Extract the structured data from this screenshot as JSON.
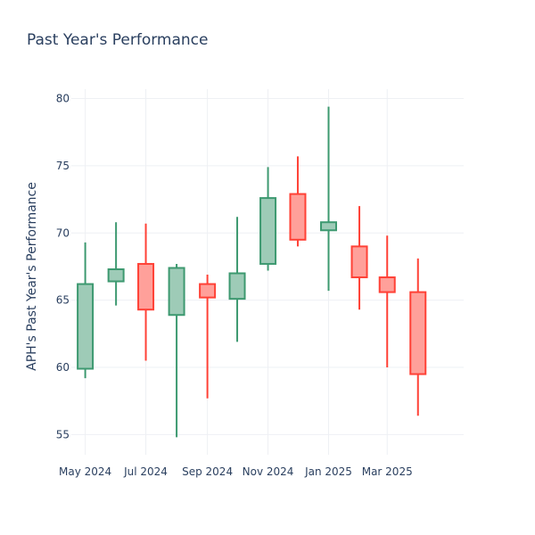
{
  "chart_data": {
    "type": "candlestick",
    "title": "Past Year's Performance",
    "xlabel": "",
    "ylabel": "APH's Past Year's Performance",
    "ylim": [
      53.5,
      80.7
    ],
    "y_ticks": [
      55,
      60,
      65,
      70,
      75,
      80
    ],
    "x_ticks": [
      "May 2024",
      "Jul 2024",
      "Sep 2024",
      "Nov 2024",
      "Jan 2025",
      "Mar 2025"
    ],
    "x_range": [
      "2024-04-17",
      "2025-05-17"
    ],
    "grid": true,
    "increasing_color": "#3d9970",
    "increasing_fill": "#9ecbb7",
    "decreasing_color": "#ff4136",
    "decreasing_fill": "#ffa09a",
    "candles": [
      {
        "date": "2024-05-01",
        "open": 59.9,
        "high": 69.3,
        "low": 59.2,
        "close": 66.2
      },
      {
        "date": "2024-06-01",
        "open": 66.4,
        "high": 70.8,
        "low": 64.6,
        "close": 67.3
      },
      {
        "date": "2024-07-01",
        "open": 67.7,
        "high": 70.7,
        "low": 60.5,
        "close": 64.3
      },
      {
        "date": "2024-08-01",
        "open": 63.9,
        "high": 67.7,
        "low": 54.8,
        "close": 67.4
      },
      {
        "date": "2024-09-01",
        "open": 66.2,
        "high": 66.9,
        "low": 57.7,
        "close": 65.2
      },
      {
        "date": "2024-10-01",
        "open": 65.1,
        "high": 71.2,
        "low": 61.9,
        "close": 67.0
      },
      {
        "date": "2024-11-01",
        "open": 67.7,
        "high": 74.9,
        "low": 67.2,
        "close": 72.6
      },
      {
        "date": "2024-12-01",
        "open": 72.9,
        "high": 75.7,
        "low": 69.0,
        "close": 69.5
      },
      {
        "date": "2025-01-01",
        "open": 70.2,
        "high": 79.4,
        "low": 65.7,
        "close": 70.8
      },
      {
        "date": "2025-02-01",
        "open": 69.0,
        "high": 72.0,
        "low": 64.3,
        "close": 66.7
      },
      {
        "date": "2025-03-01",
        "open": 66.7,
        "high": 69.8,
        "low": 60.0,
        "close": 65.6
      },
      {
        "date": "2025-04-01",
        "open": 65.6,
        "high": 68.1,
        "low": 56.4,
        "close": 59.5
      }
    ]
  }
}
